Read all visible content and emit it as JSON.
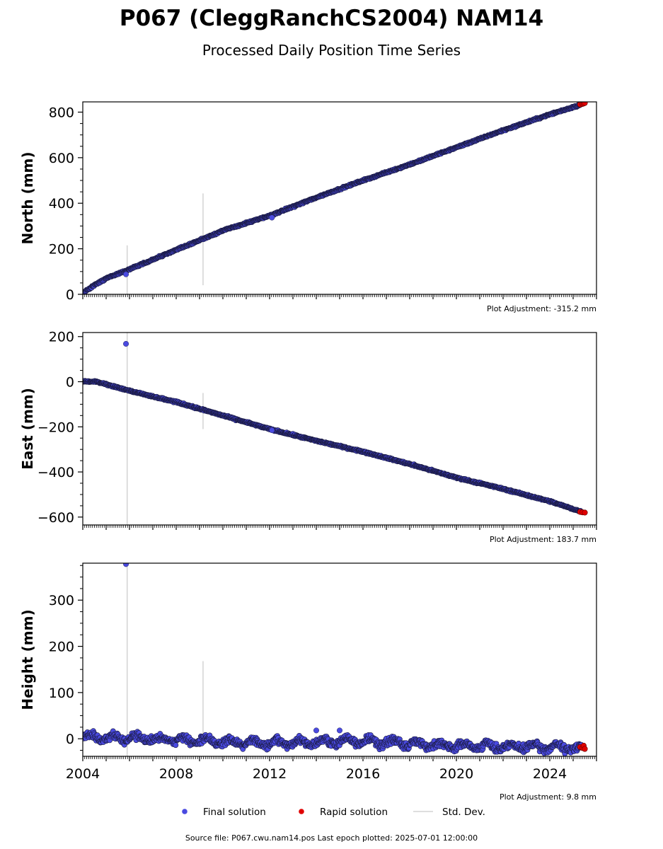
{
  "header": {
    "title": "P067 (CleggRanchCS2004) NAM14",
    "subtitle": "Processed Daily Position Time Series"
  },
  "footer": {
    "source": "Source file: P067.cwu.nam14.pos  Last epoch plotted: 2025-07-01 12:00:00"
  },
  "legend": {
    "placement": "bottom-center",
    "items": [
      {
        "label": "Final solution",
        "color": "#4a4ae0",
        "kind": "marker"
      },
      {
        "label": "Rapid solution",
        "color": "#e00000",
        "kind": "marker"
      },
      {
        "label": "Std. Dev.",
        "color": "#d3d3d3",
        "kind": "line"
      }
    ]
  },
  "chart_data": [
    {
      "type": "scatter",
      "ylabel": "North (mm)",
      "adjustment": "Plot Adjustment: -315.2 mm",
      "xlim": [
        2004,
        2026
      ],
      "ylim": [
        0,
        845
      ],
      "yticks": [
        0,
        200,
        400,
        600,
        800
      ],
      "y_minor_step": 50,
      "final": {
        "trend": [
          [
            2004.0,
            5
          ],
          [
            2004.5,
            40
          ],
          [
            2005.0,
            70
          ],
          [
            2006.0,
            110
          ],
          [
            2008.0,
            195
          ],
          [
            2010.0,
            280
          ],
          [
            2012.0,
            345
          ],
          [
            2014.0,
            425
          ],
          [
            2016.0,
            500
          ],
          [
            2018.0,
            570
          ],
          [
            2020.0,
            645
          ],
          [
            2022.0,
            720
          ],
          [
            2024.0,
            790
          ],
          [
            2025.4,
            835
          ]
        ],
        "noise": 4,
        "outliers": [
          [
            2005.85,
            88
          ],
          [
            2012.1,
            337
          ]
        ]
      },
      "rapid": [
        [
          2025.3,
          834
        ],
        [
          2025.4,
          836
        ],
        [
          2025.45,
          838
        ],
        [
          2025.5,
          840
        ]
      ],
      "stddev": [
        [
          2005.9,
          0,
          215
        ],
        [
          2009.15,
          40,
          443
        ]
      ]
    },
    {
      "type": "scatter",
      "ylabel": "East (mm)",
      "adjustment": "Plot Adjustment: 183.7 mm",
      "xlim": [
        2004,
        2026
      ],
      "ylim": [
        -635,
        218
      ],
      "yticks": [
        -600,
        -400,
        -200,
        0,
        200
      ],
      "y_minor_step": 50,
      "final": {
        "trend": [
          [
            2004.0,
            2
          ],
          [
            2004.6,
            0
          ],
          [
            2006.0,
            -40
          ],
          [
            2008.0,
            -90
          ],
          [
            2010.0,
            -150
          ],
          [
            2012.0,
            -210
          ],
          [
            2014.0,
            -262
          ],
          [
            2016.0,
            -310
          ],
          [
            2018.0,
            -365
          ],
          [
            2020.0,
            -425
          ],
          [
            2022.0,
            -475
          ],
          [
            2024.0,
            -530
          ],
          [
            2025.4,
            -578
          ]
        ],
        "noise": 4,
        "outliers": [
          [
            2005.85,
            168
          ],
          [
            2012.1,
            -215
          ]
        ]
      },
      "rapid": [
        [
          2025.3,
          -577
        ],
        [
          2025.4,
          -579
        ],
        [
          2025.5,
          -580
        ]
      ],
      "stddev": [
        [
          2005.9,
          -635,
          218
        ],
        [
          2009.15,
          -210,
          -50
        ]
      ]
    },
    {
      "type": "scatter",
      "ylabel": "Height (mm)",
      "adjustment": "Plot Adjustment: 9.8 mm",
      "xlim": [
        2004,
        2026
      ],
      "ylim": [
        -38,
        380
      ],
      "yticks": [
        0,
        100,
        200,
        300
      ],
      "y_minor_step": 25,
      "xticks": [
        2004,
        2008,
        2012,
        2016,
        2020,
        2024
      ],
      "final": {
        "trend": [
          [
            2004.0,
            5
          ],
          [
            2008.0,
            -2
          ],
          [
            2012.0,
            -10
          ],
          [
            2016.0,
            -5
          ],
          [
            2020.0,
            -15
          ],
          [
            2024.0,
            -18
          ],
          [
            2025.4,
            -20
          ]
        ],
        "noise": 9,
        "outliers": [
          [
            2005.85,
            378
          ],
          [
            2014.0,
            18
          ],
          [
            2015.0,
            18
          ]
        ]
      },
      "rapid": [
        [
          2025.3,
          -18
        ],
        [
          2025.4,
          -20
        ],
        [
          2025.45,
          -15
        ],
        [
          2025.5,
          -22
        ]
      ],
      "stddev": [
        [
          2005.9,
          -38,
          380
        ],
        [
          2009.15,
          -10,
          168
        ]
      ]
    }
  ]
}
